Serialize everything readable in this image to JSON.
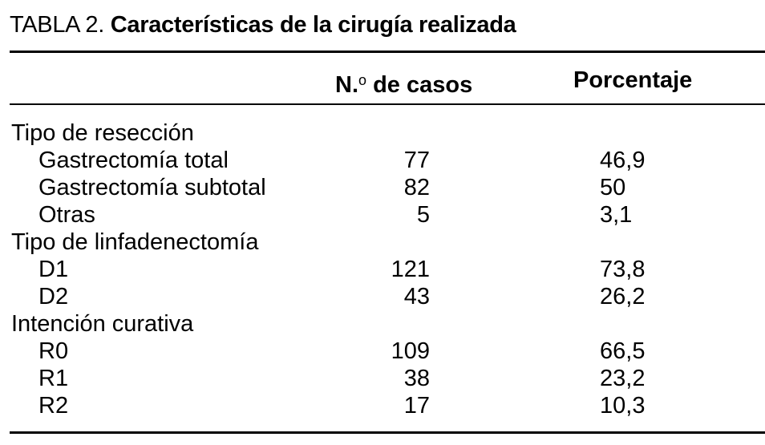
{
  "caption": {
    "label": "TABLA 2.",
    "title": "Características de la cirugía realizada"
  },
  "header": {
    "cases_prefix": "N.",
    "cases_sup": "o",
    "cases_suffix": " de casos",
    "percentage": "Porcentaje"
  },
  "rows": [
    {
      "type": "group",
      "label": "Tipo de resección",
      "cases": "",
      "pct": ""
    },
    {
      "type": "item",
      "label": "Gastrectomía total",
      "cases": "77",
      "pct": "46,9"
    },
    {
      "type": "item",
      "label": "Gastrectomía subtotal",
      "cases": "82",
      "pct": "50"
    },
    {
      "type": "item",
      "label": "Otras",
      "cases": "5",
      "pct": "3,1"
    },
    {
      "type": "group",
      "label": "Tipo de linfadenectomía",
      "cases": "",
      "pct": ""
    },
    {
      "type": "item",
      "label": "D1",
      "cases": "121",
      "pct": "73,8"
    },
    {
      "type": "item",
      "label": "D2",
      "cases": "43",
      "pct": "26,2"
    },
    {
      "type": "group",
      "label": "Intención curativa",
      "cases": "",
      "pct": ""
    },
    {
      "type": "item",
      "label": "R0",
      "cases": "109",
      "pct": "66,5"
    },
    {
      "type": "item",
      "label": "R1",
      "cases": "38",
      "pct": "23,2"
    },
    {
      "type": "item",
      "label": "R2",
      "cases": "17",
      "pct": "10,3"
    }
  ]
}
